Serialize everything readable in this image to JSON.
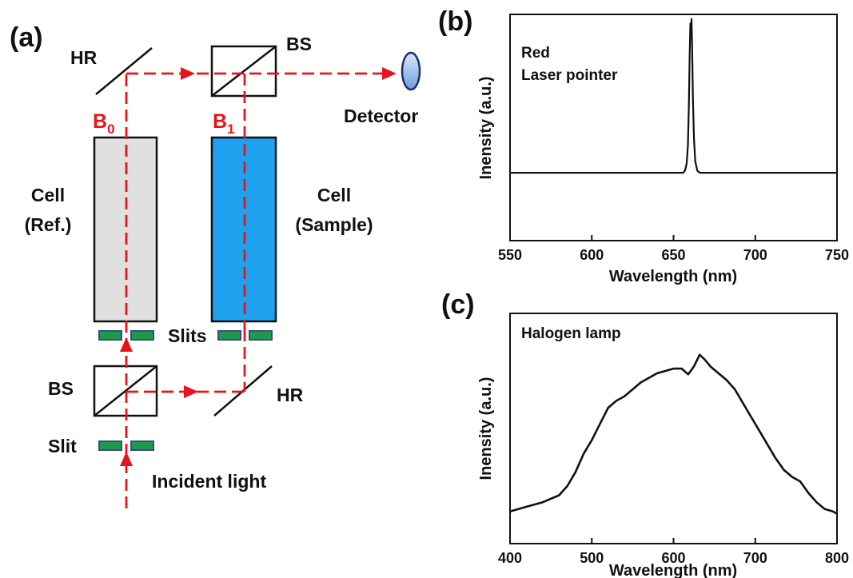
{
  "colors": {
    "beam": "#e8141b",
    "ref_cell": "#e0e0e0",
    "sample_cell": "#1ea2ef",
    "slit": "#1e9b4a",
    "detector": "#8fb6e8",
    "ink": "#111111"
  },
  "diagram": {
    "panel_label": "(a)",
    "labels": {
      "hr_top": "HR",
      "bs_top": "BS",
      "detector": "Detector",
      "beam_ref_main": "B",
      "beam_ref_sub": "0",
      "beam_sample_main": "B",
      "beam_sample_sub": "1",
      "cell_ref_line1": "Cell",
      "cell_ref_line2": "(Ref.)",
      "cell_sample_line1": "Cell",
      "cell_sample_line2": "(Sample)",
      "slits": "Slits",
      "bs_bottom": "BS",
      "hr_bottom": "HR",
      "slit": "Slit",
      "incident": "Incident light"
    }
  },
  "chart_data": [
    {
      "panel": "(b)",
      "type": "line",
      "annotation_line1": "Red",
      "annotation_line2": "Laser pointer",
      "xlabel": "Wavelength (nm)",
      "ylabel": "Inensity (a.u.)",
      "xlim": [
        550,
        750
      ],
      "xticks": [
        550,
        600,
        650,
        700,
        750
      ],
      "ylim": [
        0,
        1
      ],
      "y_ticks_shown": false,
      "grid": false,
      "series": [
        {
          "x": [
            550,
            600,
            650,
            656,
            657,
            658,
            658.8,
            659.4,
            659.9,
            660.3,
            660.6,
            661.0,
            661.4,
            661.9,
            662.5,
            663.3,
            664.5,
            666,
            700,
            750
          ],
          "y": [
            0.3,
            0.3,
            0.3,
            0.3,
            0.31,
            0.34,
            0.42,
            0.6,
            0.82,
            0.96,
            0.9,
            0.98,
            0.85,
            0.62,
            0.45,
            0.35,
            0.31,
            0.3,
            0.3,
            0.3
          ]
        }
      ]
    },
    {
      "panel": "(c)",
      "type": "line",
      "annotation_line1": "Halogen lamp",
      "xlabel": "Wavelength (nm)",
      "ylabel": "Inensity (a.u.)",
      "xlim": [
        400,
        800
      ],
      "xticks": [
        400,
        500,
        600,
        700,
        800
      ],
      "ylim": [
        0,
        1
      ],
      "y_ticks_shown": false,
      "grid": false,
      "series": [
        {
          "x": [
            400,
            420,
            440,
            460,
            470,
            480,
            490,
            500,
            510,
            520,
            530,
            540,
            550,
            560,
            570,
            580,
            590,
            600,
            610,
            618,
            625,
            632,
            638,
            645,
            655,
            665,
            675,
            685,
            695,
            705,
            715,
            725,
            735,
            745,
            755,
            765,
            775,
            785,
            795,
            800
          ],
          "y": [
            0.14,
            0.16,
            0.18,
            0.21,
            0.25,
            0.31,
            0.39,
            0.45,
            0.52,
            0.59,
            0.62,
            0.64,
            0.67,
            0.7,
            0.72,
            0.74,
            0.75,
            0.76,
            0.76,
            0.735,
            0.77,
            0.82,
            0.8,
            0.77,
            0.74,
            0.71,
            0.67,
            0.61,
            0.55,
            0.49,
            0.43,
            0.37,
            0.32,
            0.29,
            0.27,
            0.22,
            0.18,
            0.15,
            0.14,
            0.13
          ]
        }
      ]
    }
  ]
}
